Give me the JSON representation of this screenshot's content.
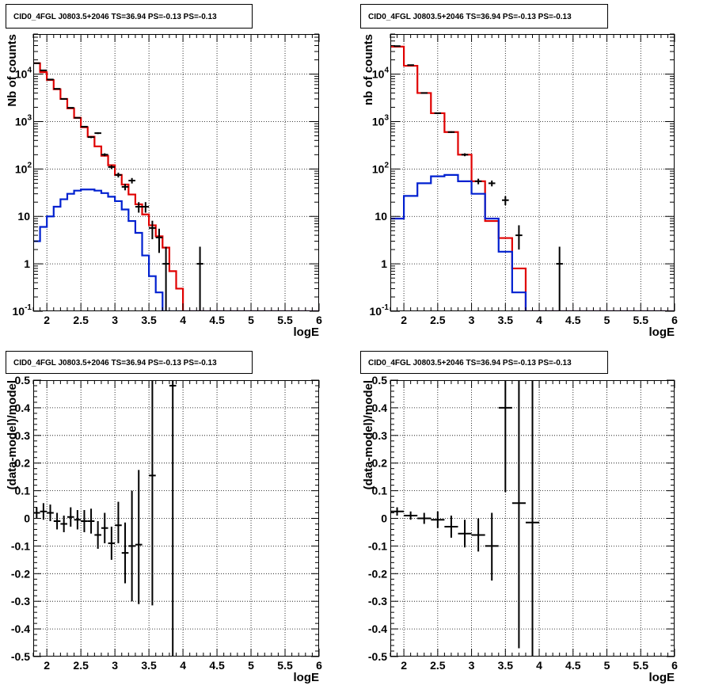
{
  "colors": {
    "data": "#000000",
    "model_total": "#e00000",
    "model_source": "#0020d0",
    "grid": "#000000"
  },
  "chart_data": [
    {
      "type": "line",
      "title": "CID0_4FGL J0803.5+2046 TS=36.94 PS=-0.13 PS=-0.13",
      "xlabel": "logE",
      "ylabel": "Nb of counts",
      "log_y": true,
      "xlim": [
        1.8,
        6.0
      ],
      "ylim": [
        0.1,
        70000
      ],
      "x_ticks": [
        "2",
        "2.5",
        "3",
        "3.5",
        "4",
        "4.5",
        "5",
        "5.5",
        "6"
      ],
      "y_ticks": [
        "10^-1",
        "1",
        "10",
        "10^2",
        "10^3",
        "10^4"
      ],
      "grid": true,
      "bin_edges": [
        1.8,
        1.9,
        2.0,
        2.1,
        2.2,
        2.3,
        2.4,
        2.5,
        2.6,
        2.7,
        2.8,
        2.9,
        3.0,
        3.1,
        3.2,
        3.3,
        3.4,
        3.5,
        3.6,
        3.7,
        3.8,
        3.9,
        4.0,
        6.0
      ],
      "series": [
        {
          "kind": "hist",
          "color": "model_total",
          "values": [
            17000,
            11000,
            7500,
            4800,
            3000,
            1900,
            1200,
            760,
            480,
            300,
            190,
            120,
            75,
            47,
            29,
            18,
            11,
            6.5,
            3.8,
            2.2,
            0.7,
            0.3,
            0.1
          ]
        },
        {
          "kind": "hist",
          "color": "model_source",
          "values": [
            3,
            6,
            10,
            16,
            23,
            30,
            35,
            37,
            37,
            35,
            31,
            26,
            21,
            14,
            8,
            4.5,
            1.5,
            0.55,
            0.25,
            0.1,
            0.1,
            0.1,
            0.1
          ]
        },
        {
          "kind": "points",
          "color": "data",
          "x": [
            1.85,
            1.95,
            2.05,
            2.15,
            2.25,
            2.35,
            2.45,
            2.55,
            2.65,
            2.75,
            2.85,
            2.95,
            3.05,
            3.15,
            3.25,
            3.35,
            3.45,
            3.55,
            3.65,
            3.75,
            4.25
          ],
          "y": [
            17000,
            12000,
            7700,
            4900,
            3000,
            1950,
            1200,
            780,
            470,
            570,
            200,
            110,
            75,
            42,
            57,
            16,
            16,
            5.7,
            3.6,
            1,
            1
          ],
          "err_lo": [
            130,
            110,
            90,
            70,
            55,
            45,
            35,
            28,
            22,
            24,
            14,
            10,
            8.7,
            6.5,
            7.5,
            4,
            4,
            2.4,
            1.9,
            1,
            1
          ],
          "err_hi": [
            130,
            110,
            90,
            70,
            55,
            45,
            35,
            28,
            22,
            24,
            14,
            10,
            8.7,
            6.5,
            7.5,
            4,
            4,
            2.4,
            1.9,
            1.3,
            1.3
          ]
        }
      ]
    },
    {
      "type": "line",
      "title": "CID0_4FGL J0803.5+2046 TS=36.94 PS=-0.13 PS=-0.13",
      "xlabel": "logE",
      "ylabel": "nb of counts",
      "log_y": true,
      "xlim": [
        1.8,
        6.0
      ],
      "ylim": [
        0.1,
        70000
      ],
      "x_ticks": [
        "2",
        "2.5",
        "3",
        "3.5",
        "4",
        "4.5",
        "5",
        "5.5",
        "6"
      ],
      "y_ticks": [
        "10^-1",
        "1",
        "10",
        "10^2",
        "10^3",
        "10^4"
      ],
      "grid": true,
      "bin_edges": [
        1.8,
        2.0,
        2.2,
        2.4,
        2.6,
        2.8,
        3.0,
        3.2,
        3.4,
        3.6,
        3.8,
        4.0,
        6.0
      ],
      "series": [
        {
          "kind": "hist",
          "color": "model_total",
          "values": [
            38000,
            15000,
            4000,
            1500,
            600,
            200,
            55,
            8,
            3.5,
            0.8,
            0.1,
            0.1
          ]
        },
        {
          "kind": "hist",
          "color": "model_source",
          "values": [
            9,
            27,
            50,
            70,
            75,
            55,
            30,
            9,
            1.8,
            0.25,
            0.1,
            0.1
          ]
        },
        {
          "kind": "points",
          "color": "data",
          "x": [
            1.9,
            2.1,
            2.3,
            2.5,
            2.7,
            2.9,
            3.1,
            3.3,
            3.5,
            3.7,
            4.3
          ],
          "y": [
            39000,
            15500,
            4000,
            1500,
            600,
            200,
            55,
            50,
            22,
            4,
            1
          ],
          "err_lo": [
            200,
            125,
            63,
            39,
            24,
            14,
            7.4,
            7,
            4.7,
            2,
            1
          ],
          "err_hi": [
            200,
            125,
            63,
            39,
            24,
            14,
            7.4,
            7,
            4.7,
            2.5,
            1.3
          ]
        }
      ]
    },
    {
      "type": "scatter",
      "title": "CID0_4FGL J0803.5+2046 TS=36.94 PS=-0.13 PS=-0.13",
      "xlabel": "logE",
      "ylabel": "(data-model)/model",
      "xlim": [
        1.8,
        6.0
      ],
      "ylim": [
        -0.5,
        0.5
      ],
      "x_ticks": [
        "2",
        "2.5",
        "3",
        "3.5",
        "4",
        "4.5",
        "5",
        "5.5",
        "6"
      ],
      "y_ticks": [
        "-0.5",
        "-0.4",
        "-0.3",
        "-0.2",
        "-0.1",
        "0",
        "0.1",
        "0.2",
        "0.3",
        "0.4",
        "0.5"
      ],
      "grid": true,
      "series": [
        {
          "kind": "points",
          "color": "data",
          "xerr": 0.05,
          "x": [
            1.85,
            1.95,
            2.05,
            2.15,
            2.25,
            2.35,
            2.45,
            2.55,
            2.65,
            2.75,
            2.85,
            2.95,
            3.05,
            3.15,
            3.25,
            3.35,
            3.55,
            3.85
          ],
          "y": [
            0.02,
            0.025,
            0.02,
            -0.01,
            -0.02,
            0.005,
            -0.005,
            -0.01,
            -0.01,
            -0.06,
            -0.035,
            -0.09,
            -0.025,
            -0.125,
            -0.1,
            -0.095,
            0.155,
            0.48
          ],
          "err_lo": [
            0.02,
            0.03,
            0.03,
            0.03,
            0.03,
            0.035,
            0.035,
            0.04,
            0.045,
            0.05,
            0.055,
            0.06,
            0.065,
            0.11,
            0.2,
            0.215,
            0.47,
            0.98
          ],
          "err_hi": [
            0.02,
            0.03,
            0.03,
            0.03,
            0.03,
            0.035,
            0.035,
            0.04,
            0.045,
            0.05,
            0.055,
            0.06,
            0.085,
            0.11,
            0.2,
            0.27,
            0.345,
            0.02
          ]
        }
      ]
    },
    {
      "type": "scatter",
      "title": "CID0_4FGL J0803.5+2046 TS=36.94 PS=-0.13 PS=-0.13",
      "xlabel": "logE",
      "ylabel": "(data-model)/model",
      "xlim": [
        1.8,
        6.0
      ],
      "ylim": [
        -0.5,
        0.5
      ],
      "x_ticks": [
        "2",
        "2.5",
        "3",
        "3.5",
        "4",
        "4.5",
        "5",
        "5.5",
        "6"
      ],
      "y_ticks": [
        "-0.5",
        "-0.4",
        "-0.3",
        "-0.2",
        "-0.1",
        "0",
        "0.1",
        "0.2",
        "0.3",
        "0.4",
        "0.5"
      ],
      "grid": true,
      "series": [
        {
          "kind": "points",
          "color": "data",
          "xerr": 0.1,
          "x": [
            1.9,
            2.1,
            2.3,
            2.5,
            2.7,
            2.9,
            3.1,
            3.3,
            3.5,
            3.7,
            3.9
          ],
          "y": [
            0.025,
            0.01,
            0.0,
            -0.005,
            -0.03,
            -0.055,
            -0.06,
            -0.1,
            0.4,
            0.055,
            -0.015
          ],
          "err_lo": [
            0.015,
            0.015,
            0.02,
            0.03,
            0.04,
            0.05,
            0.06,
            0.125,
            0.305,
            0.525,
            0.485
          ],
          "err_hi": [
            0.015,
            0.015,
            0.02,
            0.03,
            0.04,
            0.05,
            0.06,
            0.12,
            0.1,
            0.445,
            0.515
          ]
        }
      ]
    }
  ]
}
